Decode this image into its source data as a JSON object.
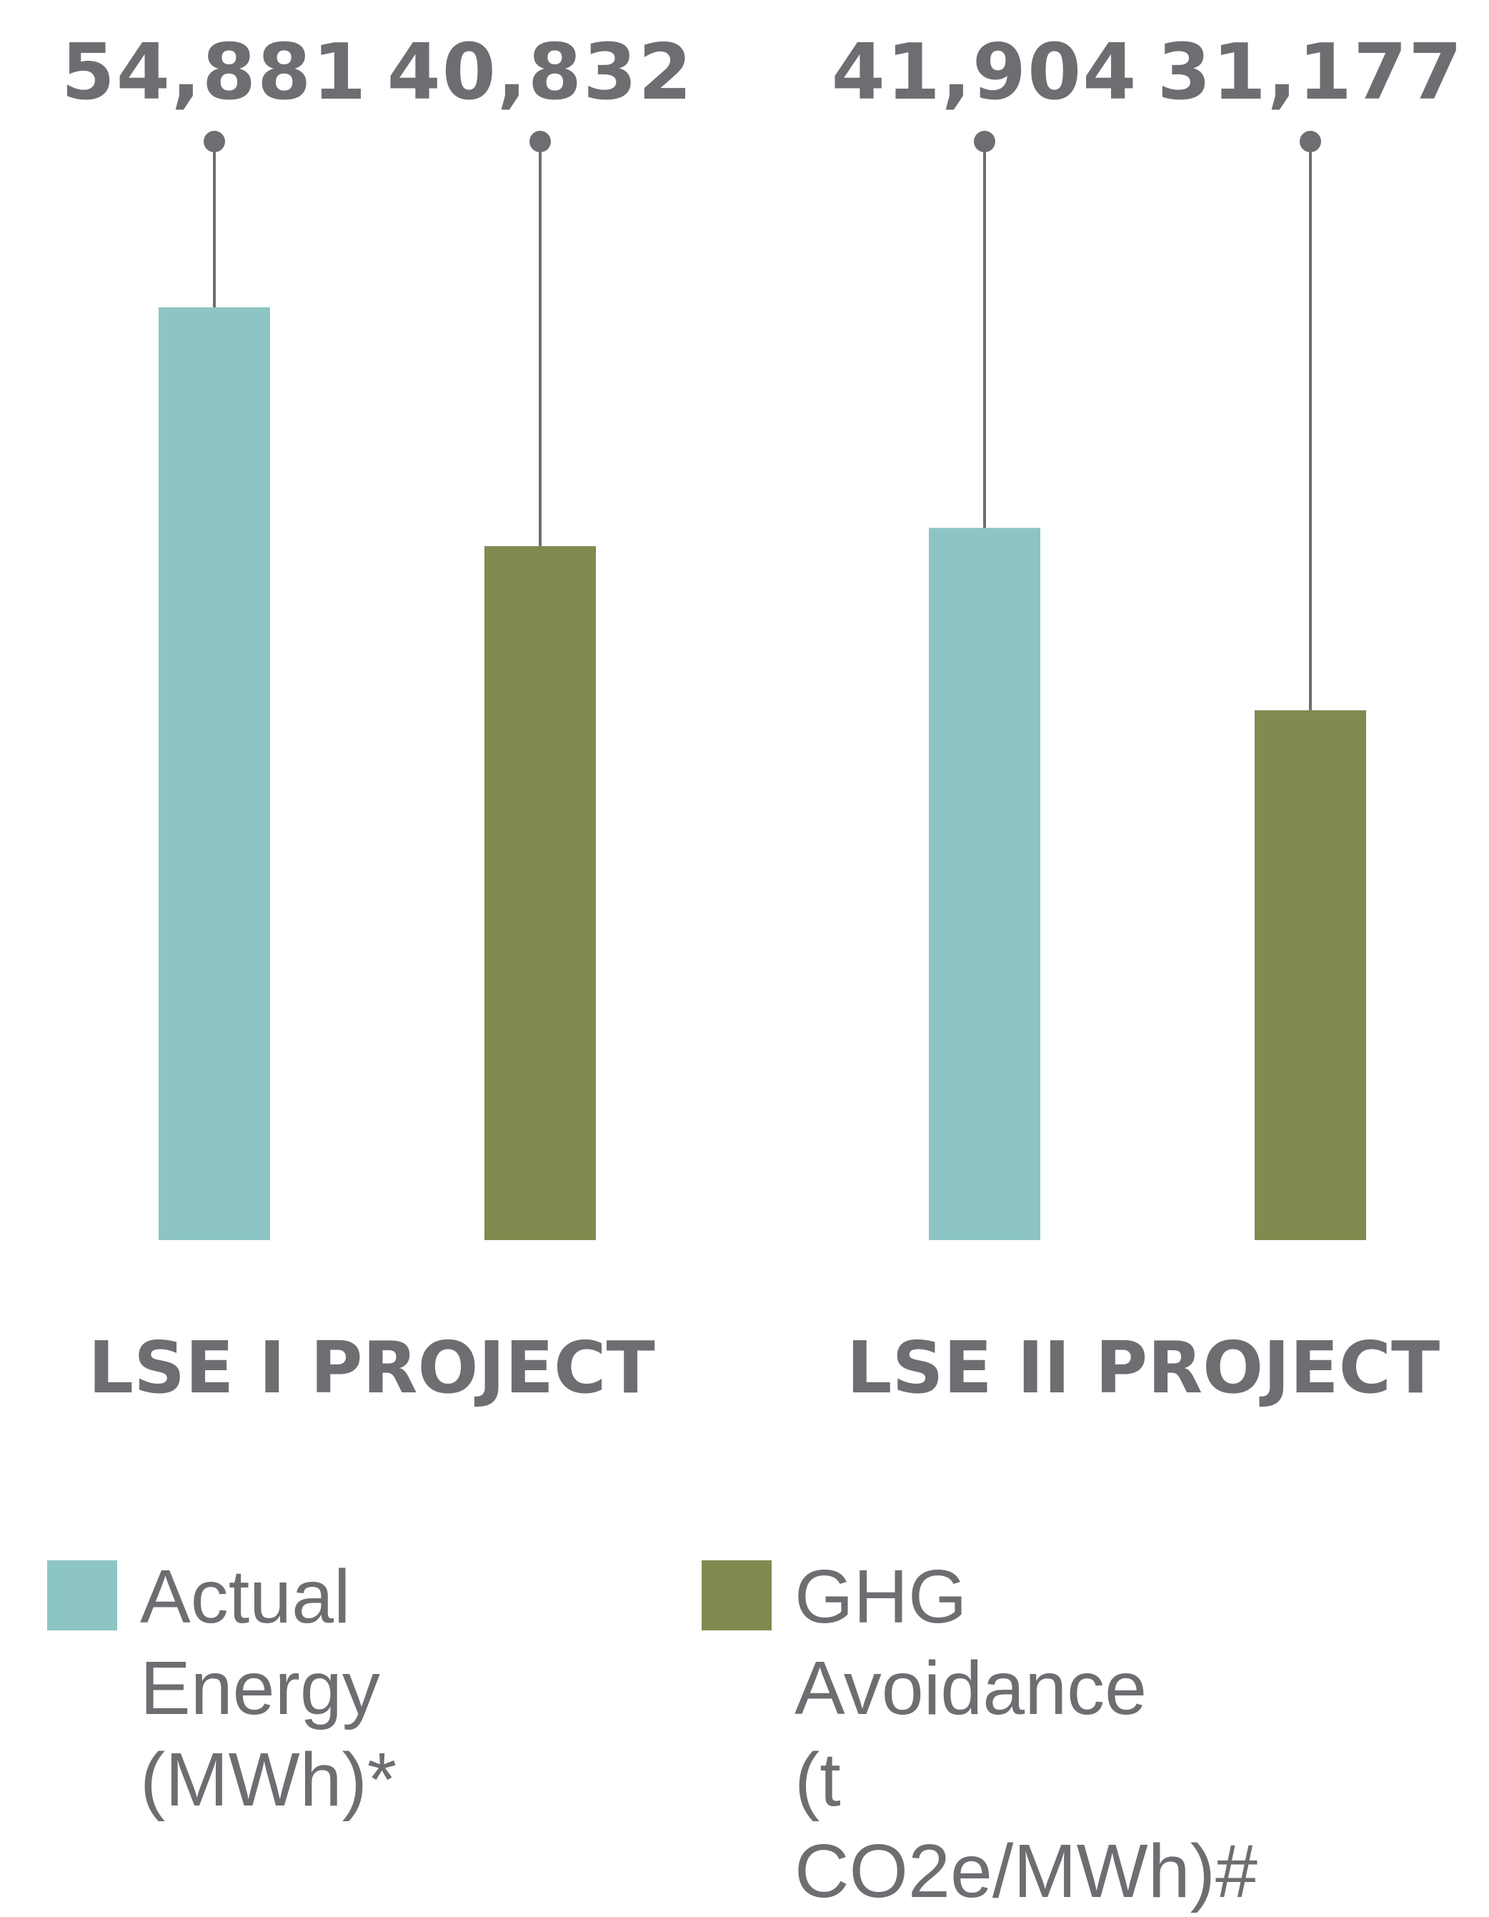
{
  "chart_data": {
    "type": "bar",
    "categories": [
      "LSE I PROJECT",
      "LSE II PROJECT"
    ],
    "series": [
      {
        "name": "Actual Energy (MWh)*",
        "color": "#8dc5c4",
        "values": [
          54881,
          41904
        ],
        "labels": [
          "54,881",
          "41,904"
        ]
      },
      {
        "name": "GHG Avoidance (t CO2e/MWh)#",
        "color": "#808b4f",
        "values": [
          40832,
          31177
        ],
        "labels": [
          "40,832",
          "31,177"
        ]
      }
    ],
    "ylim": [
      0,
      60000
    ],
    "grid": false,
    "legend_position": "bottom",
    "label_color": "#6d6e71"
  },
  "legend": [
    {
      "text": "Actual Energy\n(MWh)*",
      "color": "#8dc5c4"
    },
    {
      "text": "GHG Avoidance\n(t CO2e/MWh)#",
      "color": "#808b4f"
    }
  ]
}
